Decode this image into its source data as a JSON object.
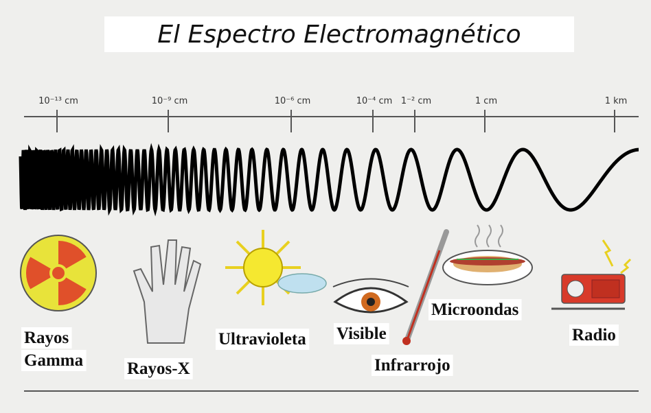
{
  "title": "El Espectro Electromagnético",
  "scale": [
    "10⁻¹³ cm",
    "10⁻⁹ cm",
    "10⁻⁶ cm",
    "10⁻⁴ cm",
    "1⁻² cm",
    "1 cm",
    "1 km"
  ],
  "bands": [
    {
      "lines": [
        "Rayos",
        "Gamma"
      ]
    },
    {
      "lines": [
        "Rayos-X"
      ]
    },
    {
      "lines": [
        "Ultravioleta"
      ]
    },
    {
      "lines": [
        "Visible"
      ]
    },
    {
      "lines": [
        "Infrarrojo"
      ]
    },
    {
      "lines": [
        "Microondas"
      ]
    },
    {
      "lines": [
        "Radio"
      ]
    }
  ]
}
